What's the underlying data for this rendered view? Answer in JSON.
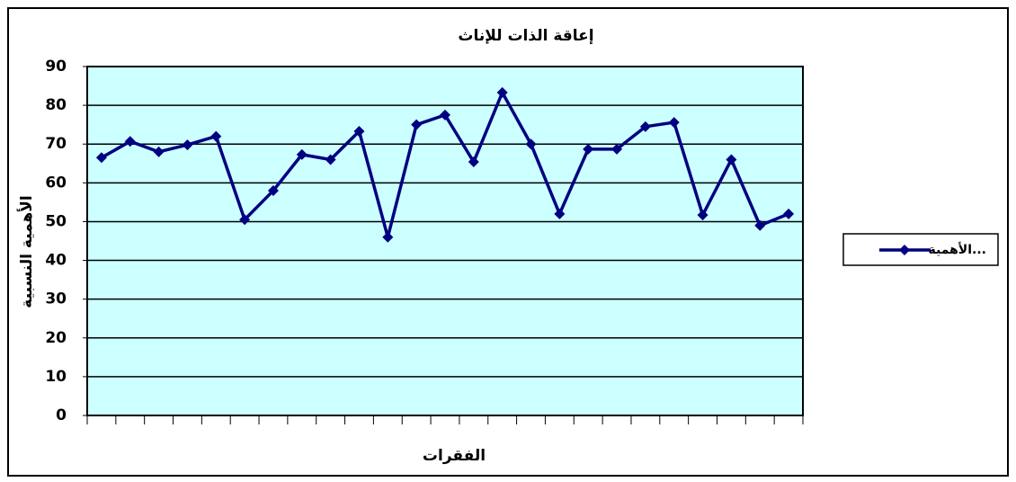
{
  "chart_data": {
    "type": "line",
    "title": "إعاقة الذات للإناث",
    "x_label": "الفقرات",
    "y_label": "الأهمية النسبية",
    "categories": [
      null,
      null,
      null,
      null,
      null,
      null,
      null,
      null,
      null,
      null,
      null,
      null,
      null,
      null,
      null,
      null,
      null,
      null,
      null,
      null,
      null,
      null,
      null,
      null,
      null
    ],
    "series": [
      {
        "name": "الأهمية...",
        "color": "#000080",
        "values": [
          66.5,
          70.7,
          68,
          69.8,
          72,
          50.5,
          58,
          67.3,
          66,
          73.3,
          46,
          75,
          77.5,
          65.4,
          83.3,
          70,
          52,
          68.7,
          68.7,
          74.5,
          75.6,
          51.7,
          66,
          49,
          52
        ]
      }
    ],
    "ylim": [
      0,
      90
    ],
    "yticks": [
      0,
      10,
      20,
      30,
      40,
      50,
      60,
      70,
      80,
      90
    ],
    "grid": true,
    "legend": "right"
  }
}
